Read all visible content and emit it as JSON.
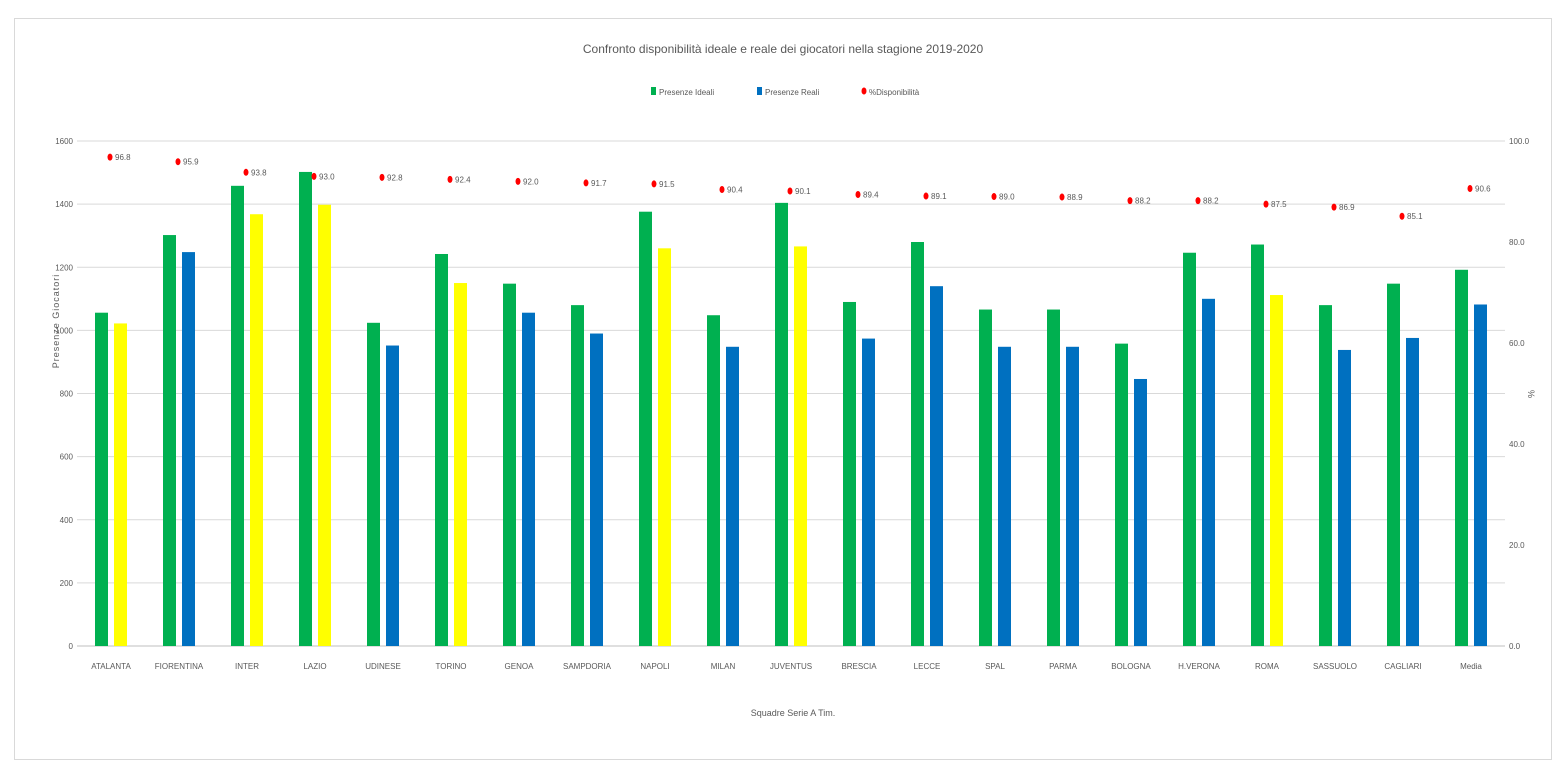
{
  "chart_data": {
    "type": "bar",
    "title": "Confronto disponibilità ideale e reale dei giocatori nella stagione 2019-2020",
    "xlabel": "Squadre Serie  A Tim.",
    "ylabel": "Presenze Giocatori",
    "y2label": "%",
    "ylim": [
      0,
      1600
    ],
    "y2lim": [
      0,
      100
    ],
    "yticks": [
      "0",
      "200",
      "400",
      "600",
      "800",
      "1000",
      "1200",
      "1400",
      "1600"
    ],
    "y2ticks": [
      "0.0",
      "20.0",
      "40.0",
      "60.0",
      "80.0",
      "100.0"
    ],
    "grid": true,
    "legend_position": "top",
    "categories": [
      "ATALANTA",
      "FIORENTINA",
      "INTER",
      "LAZIO",
      "UDINESE",
      "TORINO",
      "GENOA",
      "SAMPDORIA",
      "NAPOLI",
      "MILAN",
      "JUVENTUS",
      "BRESCIA",
      "LECCE",
      "SPAL",
      "PARMA",
      "BOLOGNA",
      "H.VERONA",
      "ROMA",
      "SASSUOLO",
      "CAGLIARI",
      "Media"
    ],
    "series": [
      {
        "name": "Presenze Ideali",
        "axis": "left",
        "kind": "bar",
        "color": "#00b050",
        "values": [
          1056,
          1302,
          1458,
          1502,
          1024,
          1242,
          1148,
          1080,
          1376,
          1048,
          1404,
          1090,
          1280,
          1066,
          1066,
          958,
          1246,
          1272,
          1080,
          1148,
          1192
        ]
      },
      {
        "name": "Presenze Reali",
        "axis": "left",
        "kind": "bar",
        "color": "#0070c0",
        "values": [
          1022,
          1248,
          1368,
          1398,
          952,
          1150,
          1056,
          990,
          1260,
          948,
          1266,
          974,
          1140,
          948,
          948,
          846,
          1100,
          1112,
          938,
          976,
          1082
        ]
      },
      {
        "name": "%Disponibilità",
        "axis": "right",
        "kind": "point",
        "color": "#ff0000",
        "values": [
          96.8,
          95.9,
          93.8,
          93.0,
          92.8,
          92.4,
          92.0,
          91.7,
          91.5,
          90.4,
          90.1,
          89.4,
          89.1,
          89.0,
          88.9,
          88.2,
          88.2,
          87.5,
          86.9,
          85.1,
          90.6
        ],
        "labels": [
          "96.8",
          "95.9",
          "93.8",
          "93.0",
          "92.8",
          "92.4",
          "92.0",
          "91.7",
          "91.5",
          "90.4",
          "90.1",
          "89.4",
          "89.1",
          "89.0",
          "88.9",
          "88.2",
          "88.2",
          "87.5",
          "86.9",
          "85.1",
          "90.6"
        ]
      }
    ],
    "highlight_color": "#ffff00",
    "highlighted_categories": [
      "ATALANTA",
      "INTER",
      "LAZIO",
      "TORINO",
      "NAPOLI",
      "JUVENTUS",
      "ROMA"
    ]
  }
}
